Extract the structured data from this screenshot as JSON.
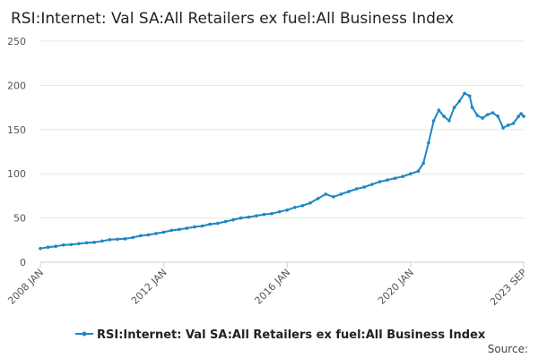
{
  "chart_data": {
    "type": "line",
    "title": "RSI:Internet: Val SA:All Retailers ex fuel:All Business Index",
    "xlabel": "",
    "ylabel": "",
    "ylim": [
      0,
      250
    ],
    "yticks": [
      "0",
      "50",
      "100",
      "150",
      "200",
      "250"
    ],
    "xticks": [
      "2008 JAN",
      "2012 JAN",
      "2016 JAN",
      "2020 JAN",
      "2023 SEP"
    ],
    "x_range": [
      "2008-01",
      "2023-09"
    ],
    "grid": true,
    "legend_position": "bottom",
    "source": "Source:",
    "series": [
      {
        "name": "RSI:Internet: Val SA:All Retailers ex fuel:All Business Index",
        "color": "#1f86c4",
        "points": [
          [
            "2008-01",
            15.5
          ],
          [
            "2008-04",
            17
          ],
          [
            "2008-07",
            18
          ],
          [
            "2008-10",
            19.5
          ],
          [
            "2009-01",
            20
          ],
          [
            "2009-04",
            21
          ],
          [
            "2009-07",
            22
          ],
          [
            "2009-10",
            22.5
          ],
          [
            "2010-01",
            24
          ],
          [
            "2010-04",
            25.5
          ],
          [
            "2010-07",
            26
          ],
          [
            "2010-10",
            26.5
          ],
          [
            "2011-01",
            28
          ],
          [
            "2011-04",
            30
          ],
          [
            "2011-07",
            31
          ],
          [
            "2011-10",
            32.5
          ],
          [
            "2012-01",
            34
          ],
          [
            "2012-04",
            36
          ],
          [
            "2012-07",
            37
          ],
          [
            "2012-10",
            38.5
          ],
          [
            "2013-01",
            40
          ],
          [
            "2013-04",
            41
          ],
          [
            "2013-07",
            43
          ],
          [
            "2013-10",
            44
          ],
          [
            "2014-01",
            46
          ],
          [
            "2014-04",
            48
          ],
          [
            "2014-07",
            50
          ],
          [
            "2014-10",
            51
          ],
          [
            "2015-01",
            52.5
          ],
          [
            "2015-04",
            54
          ],
          [
            "2015-07",
            55
          ],
          [
            "2015-10",
            57
          ],
          [
            "2016-01",
            59
          ],
          [
            "2016-04",
            62
          ],
          [
            "2016-07",
            64
          ],
          [
            "2016-10",
            67
          ],
          [
            "2017-01",
            72
          ],
          [
            "2017-04",
            77
          ],
          [
            "2017-07",
            74
          ],
          [
            "2017-10",
            77
          ],
          [
            "2018-01",
            80
          ],
          [
            "2018-04",
            83
          ],
          [
            "2018-07",
            85
          ],
          [
            "2018-10",
            88
          ],
          [
            "2019-01",
            91
          ],
          [
            "2019-04",
            93
          ],
          [
            "2019-07",
            95
          ],
          [
            "2019-10",
            97
          ],
          [
            "2020-01",
            100
          ],
          [
            "2020-04",
            103
          ],
          [
            "2020-06",
            112
          ],
          [
            "2020-08",
            135
          ],
          [
            "2020-10",
            160
          ],
          [
            "2020-12",
            172
          ],
          [
            "2021-02",
            165
          ],
          [
            "2021-04",
            160
          ],
          [
            "2021-06",
            175
          ],
          [
            "2021-08",
            182
          ],
          [
            "2021-10",
            191
          ],
          [
            "2021-12",
            188
          ],
          [
            "2022-01",
            175
          ],
          [
            "2022-03",
            166
          ],
          [
            "2022-05",
            163
          ],
          [
            "2022-07",
            167
          ],
          [
            "2022-09",
            169
          ],
          [
            "2022-11",
            165
          ],
          [
            "2023-01",
            152
          ],
          [
            "2023-03",
            155
          ],
          [
            "2023-05",
            157
          ],
          [
            "2023-07",
            165
          ],
          [
            "2023-08",
            168
          ],
          [
            "2023-09",
            165
          ]
        ]
      }
    ]
  }
}
